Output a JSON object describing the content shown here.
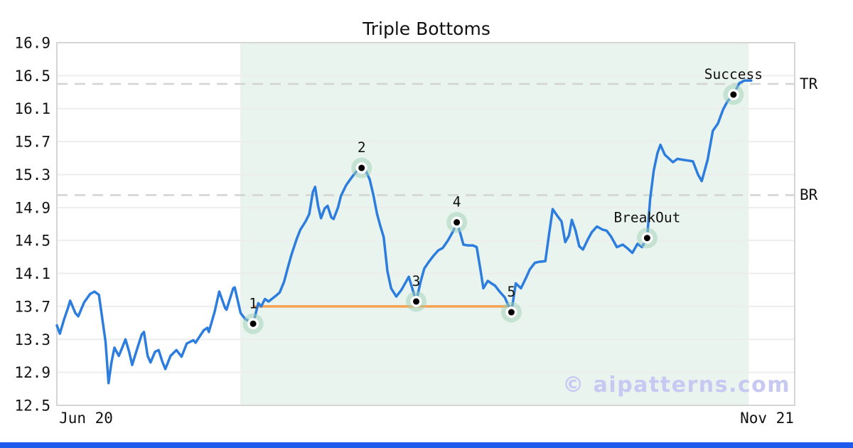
{
  "page": {
    "background": "#ffffff",
    "watermark_text": "© aipatterns.com",
    "watermark_color": "#c8c9f2",
    "bottom_bar_color": "#1e5aec"
  },
  "chart_data": {
    "type": "line",
    "title": "Triple Bottoms",
    "x_tick_labels": [
      "Jun 20",
      "Nov 21"
    ],
    "y_ticks": [
      16.9,
      16.5,
      16.1,
      15.7,
      15.3,
      14.9,
      14.5,
      14.1,
      13.7,
      13.3,
      12.9,
      12.5
    ],
    "ylim": [
      12.5,
      16.9
    ],
    "grid": "horizontal-only",
    "legend": "none",
    "colors": {
      "line": "#2d7dde",
      "support_line": "#f8a14e",
      "grid": "#ededed",
      "frame": "#d6d6d6",
      "level_dash": "#d3d3d3",
      "region_fill": "#e9f4ee",
      "marker_halo": "#9fd0b5",
      "marker_dot": "#000000",
      "text": "#111111"
    },
    "levels": [
      {
        "label": "TR",
        "value": 16.4
      },
      {
        "label": "BR",
        "value": 15.05
      }
    ],
    "support_line": {
      "value": 13.7,
      "x_from": 0.266,
      "x_to": 0.619
    },
    "shaded_region": {
      "x_from": 0.2486,
      "x_to": 0.9374
    },
    "annotations": [
      {
        "label": "1",
        "x": 0.266,
        "value": 13.49
      },
      {
        "label": "2",
        "x": 0.413,
        "value": 15.38
      },
      {
        "label": "3",
        "x": 0.487,
        "value": 13.76
      },
      {
        "label": "4",
        "x": 0.542,
        "value": 14.72
      },
      {
        "label": "5",
        "x": 0.616,
        "value": 13.63
      },
      {
        "label": "BreakOut",
        "x": 0.8,
        "value": 14.53
      },
      {
        "label": "Success",
        "x": 0.917,
        "value": 16.27
      }
    ],
    "series": [
      {
        "name": "price",
        "points": [
          [
            0.0,
            13.47
          ],
          [
            0.004,
            13.37
          ],
          [
            0.01,
            13.55
          ],
          [
            0.015,
            13.68
          ],
          [
            0.018,
            13.77
          ],
          [
            0.025,
            13.62
          ],
          [
            0.029,
            13.58
          ],
          [
            0.037,
            13.75
          ],
          [
            0.045,
            13.85
          ],
          [
            0.051,
            13.88
          ],
          [
            0.057,
            13.84
          ],
          [
            0.066,
            13.27
          ],
          [
            0.07,
            12.77
          ],
          [
            0.074,
            13.02
          ],
          [
            0.078,
            13.2
          ],
          [
            0.084,
            13.1
          ],
          [
            0.089,
            13.21
          ],
          [
            0.093,
            13.3
          ],
          [
            0.098,
            13.15
          ],
          [
            0.102,
            12.99
          ],
          [
            0.109,
            13.19
          ],
          [
            0.115,
            13.36
          ],
          [
            0.118,
            13.39
          ],
          [
            0.123,
            13.1
          ],
          [
            0.127,
            13.02
          ],
          [
            0.133,
            13.15
          ],
          [
            0.138,
            13.17
          ],
          [
            0.143,
            13.03
          ],
          [
            0.147,
            12.94
          ],
          [
            0.154,
            13.1
          ],
          [
            0.162,
            13.17
          ],
          [
            0.169,
            13.09
          ],
          [
            0.176,
            13.25
          ],
          [
            0.185,
            13.29
          ],
          [
            0.188,
            13.26
          ],
          [
            0.199,
            13.41
          ],
          [
            0.204,
            13.44
          ],
          [
            0.206,
            13.39
          ],
          [
            0.214,
            13.64
          ],
          [
            0.22,
            13.88
          ],
          [
            0.228,
            13.68
          ],
          [
            0.23,
            13.66
          ],
          [
            0.239,
            13.92
          ],
          [
            0.241,
            13.93
          ],
          [
            0.249,
            13.62
          ],
          [
            0.255,
            13.55
          ],
          [
            0.266,
            13.49
          ],
          [
            0.273,
            13.74
          ],
          [
            0.277,
            13.7
          ],
          [
            0.282,
            13.79
          ],
          [
            0.287,
            13.76
          ],
          [
            0.297,
            13.83
          ],
          [
            0.302,
            13.87
          ],
          [
            0.308,
            14.0
          ],
          [
            0.313,
            14.17
          ],
          [
            0.318,
            14.33
          ],
          [
            0.325,
            14.52
          ],
          [
            0.33,
            14.63
          ],
          [
            0.337,
            14.73
          ],
          [
            0.342,
            14.82
          ],
          [
            0.347,
            15.09
          ],
          [
            0.35,
            15.15
          ],
          [
            0.354,
            14.92
          ],
          [
            0.358,
            14.77
          ],
          [
            0.363,
            14.89
          ],
          [
            0.367,
            14.92
          ],
          [
            0.372,
            14.78
          ],
          [
            0.375,
            14.76
          ],
          [
            0.381,
            14.9
          ],
          [
            0.385,
            15.04
          ],
          [
            0.392,
            15.17
          ],
          [
            0.4,
            15.27
          ],
          [
            0.408,
            15.36
          ],
          [
            0.413,
            15.38
          ],
          [
            0.418,
            15.36
          ],
          [
            0.424,
            15.24
          ],
          [
            0.429,
            15.05
          ],
          [
            0.434,
            14.82
          ],
          [
            0.438,
            14.69
          ],
          [
            0.443,
            14.54
          ],
          [
            0.448,
            14.13
          ],
          [
            0.453,
            13.92
          ],
          [
            0.46,
            13.82
          ],
          [
            0.467,
            13.9
          ],
          [
            0.477,
            14.06
          ],
          [
            0.487,
            13.76
          ],
          [
            0.493,
            14.0
          ],
          [
            0.498,
            14.16
          ],
          [
            0.504,
            14.24
          ],
          [
            0.511,
            14.32
          ],
          [
            0.517,
            14.38
          ],
          [
            0.523,
            14.41
          ],
          [
            0.53,
            14.5
          ],
          [
            0.537,
            14.61
          ],
          [
            0.542,
            14.72
          ],
          [
            0.547,
            14.58
          ],
          [
            0.551,
            14.45
          ],
          [
            0.557,
            14.44
          ],
          [
            0.564,
            14.44
          ],
          [
            0.569,
            14.42
          ],
          [
            0.574,
            14.15
          ],
          [
            0.578,
            13.92
          ],
          [
            0.584,
            14.01
          ],
          [
            0.589,
            13.98
          ],
          [
            0.594,
            13.95
          ],
          [
            0.6,
            13.88
          ],
          [
            0.607,
            13.81
          ],
          [
            0.616,
            13.63
          ],
          [
            0.622,
            13.98
          ],
          [
            0.629,
            13.92
          ],
          [
            0.636,
            14.05
          ],
          [
            0.641,
            14.15
          ],
          [
            0.648,
            14.23
          ],
          [
            0.653,
            14.24
          ],
          [
            0.662,
            14.25
          ],
          [
            0.667,
            14.57
          ],
          [
            0.672,
            14.88
          ],
          [
            0.679,
            14.79
          ],
          [
            0.684,
            14.73
          ],
          [
            0.689,
            14.48
          ],
          [
            0.694,
            14.56
          ],
          [
            0.698,
            14.75
          ],
          [
            0.703,
            14.62
          ],
          [
            0.708,
            14.43
          ],
          [
            0.713,
            14.39
          ],
          [
            0.72,
            14.52
          ],
          [
            0.725,
            14.6
          ],
          [
            0.732,
            14.67
          ],
          [
            0.74,
            14.63
          ],
          [
            0.745,
            14.62
          ],
          [
            0.751,
            14.55
          ],
          [
            0.759,
            14.42
          ],
          [
            0.767,
            14.45
          ],
          [
            0.774,
            14.4
          ],
          [
            0.78,
            14.35
          ],
          [
            0.787,
            14.46
          ],
          [
            0.793,
            14.42
          ],
          [
            0.8,
            14.53
          ],
          [
            0.804,
            15.0
          ],
          [
            0.809,
            15.35
          ],
          [
            0.814,
            15.56
          ],
          [
            0.818,
            15.66
          ],
          [
            0.824,
            15.54
          ],
          [
            0.835,
            15.45
          ],
          [
            0.841,
            15.49
          ],
          [
            0.848,
            15.48
          ],
          [
            0.855,
            15.47
          ],
          [
            0.862,
            15.46
          ],
          [
            0.869,
            15.3
          ],
          [
            0.874,
            15.22
          ],
          [
            0.882,
            15.48
          ],
          [
            0.889,
            15.83
          ],
          [
            0.896,
            15.92
          ],
          [
            0.903,
            16.09
          ],
          [
            0.909,
            16.19
          ],
          [
            0.917,
            16.27
          ],
          [
            0.925,
            16.41
          ],
          [
            0.932,
            16.44
          ],
          [
            0.941,
            16.44
          ]
        ]
      }
    ]
  }
}
